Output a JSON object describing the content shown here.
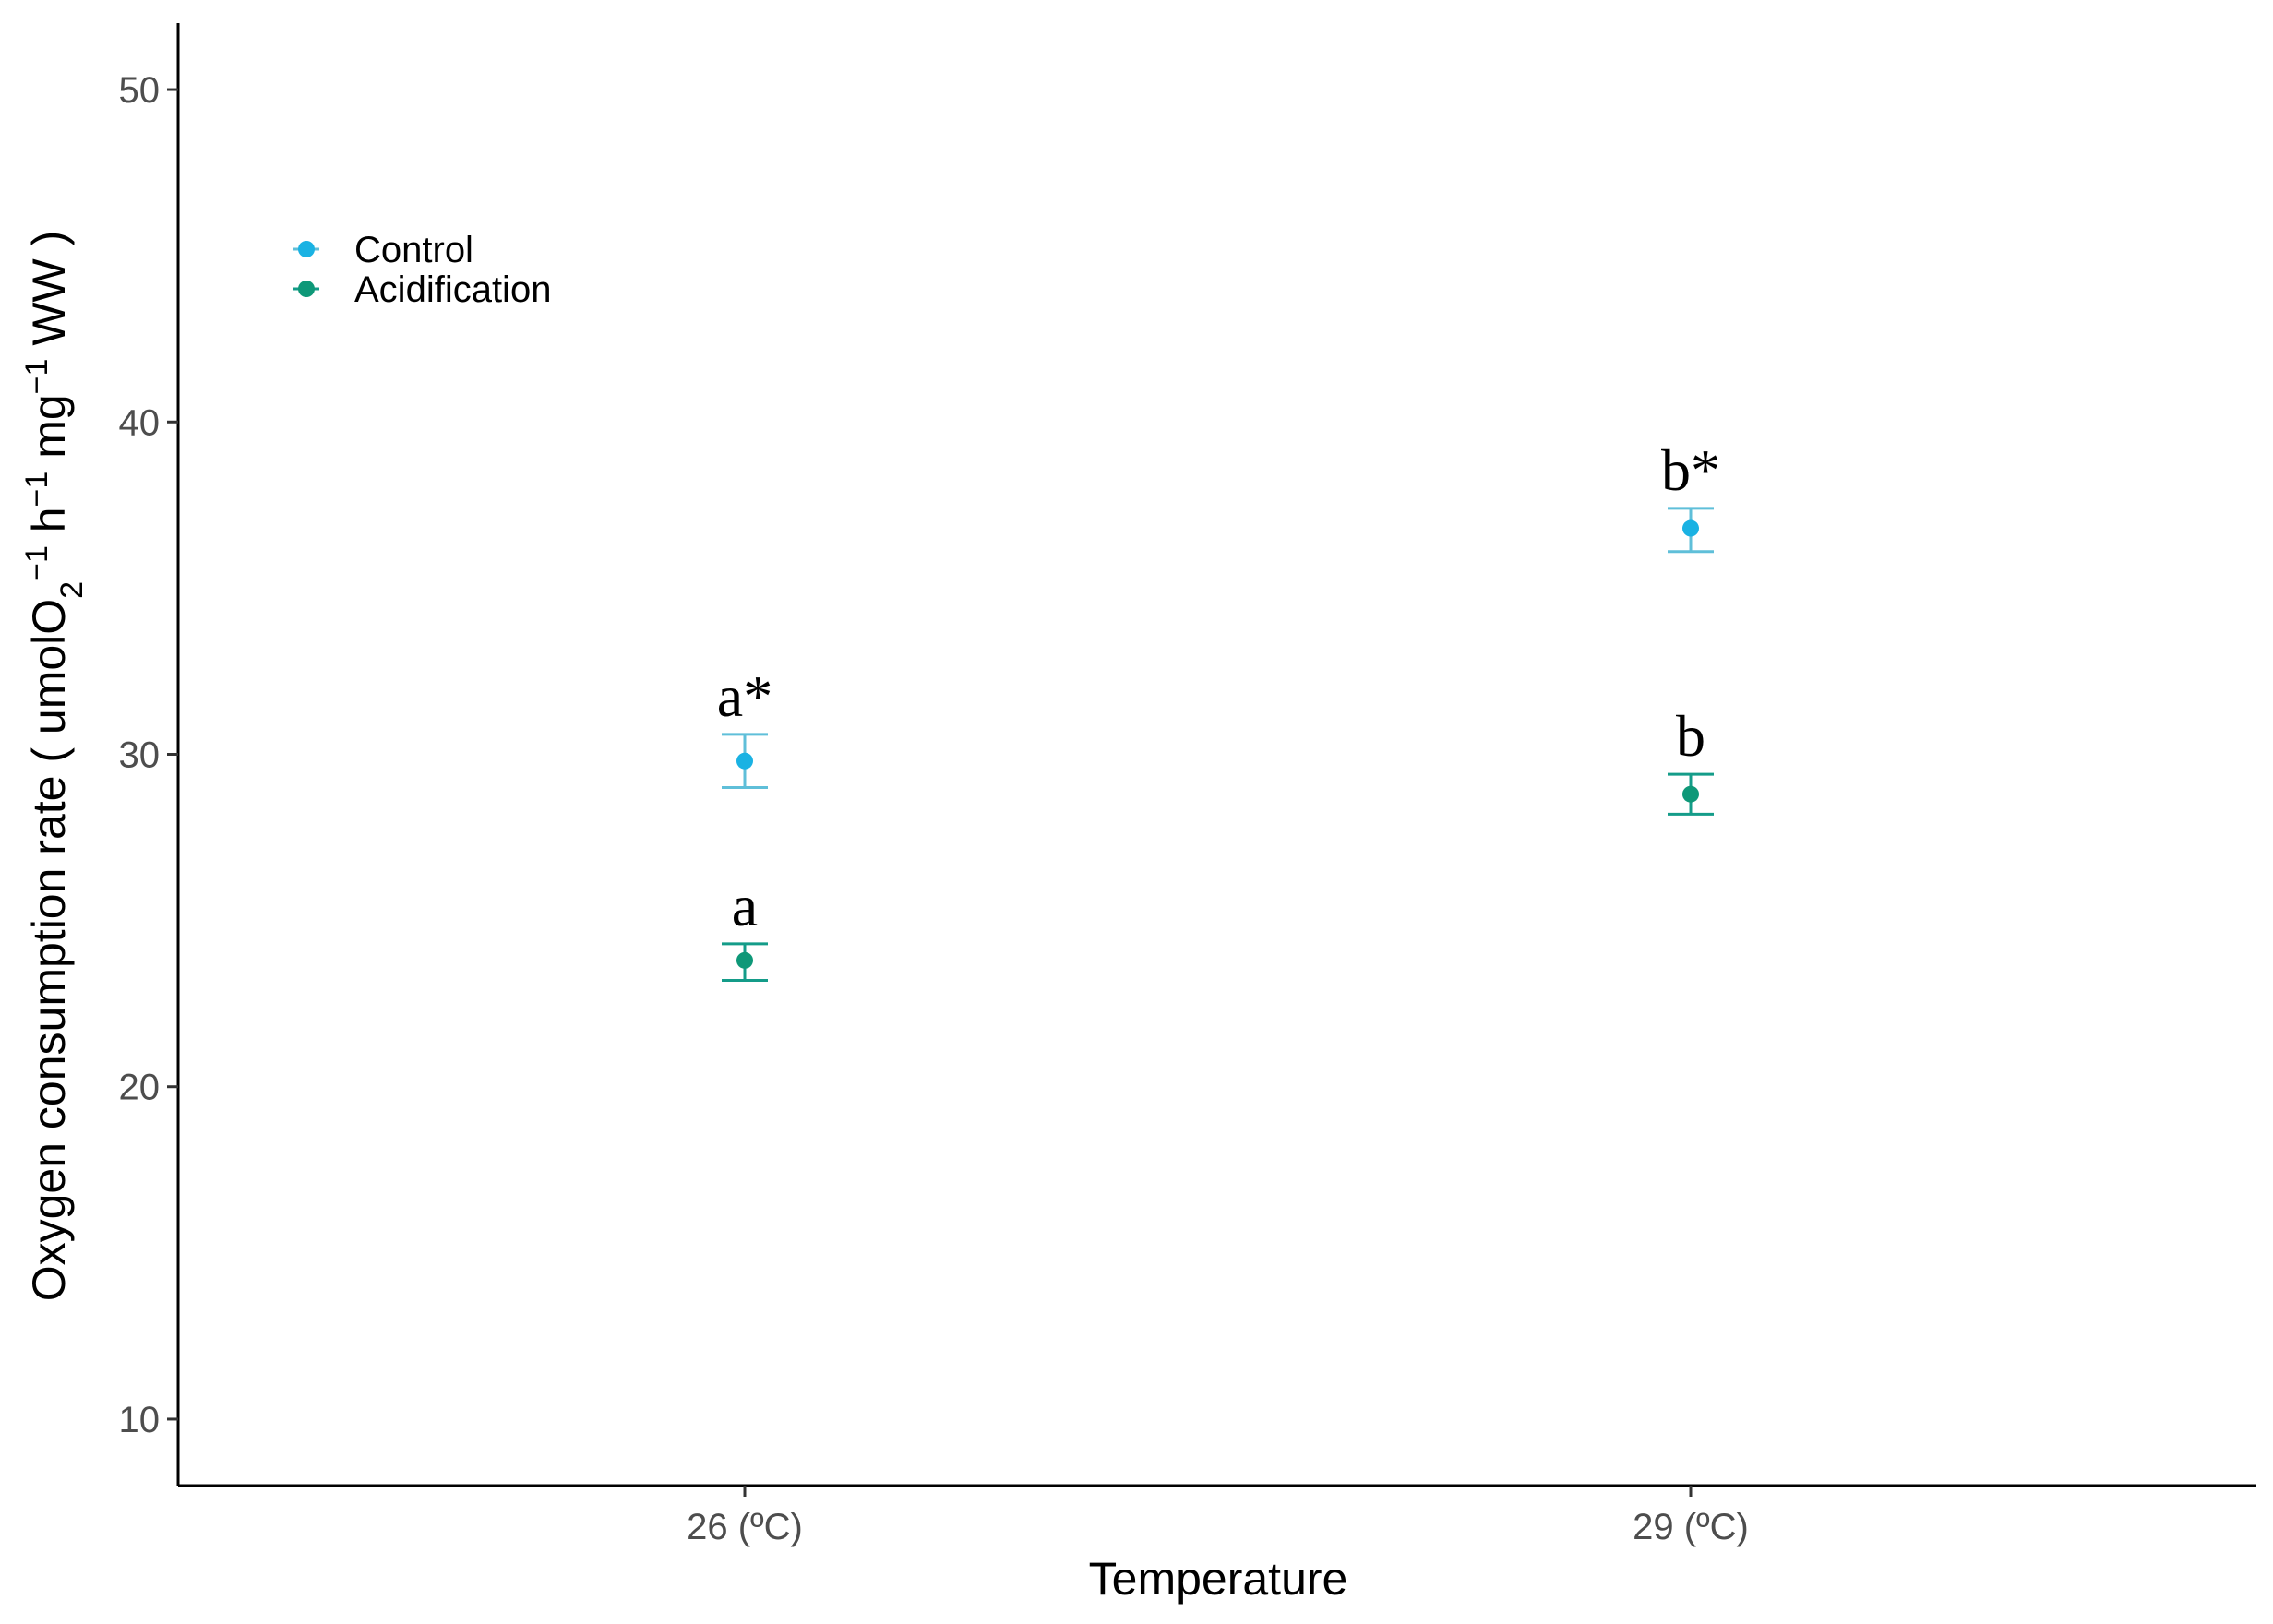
{
  "chart_data": {
    "type": "scatter",
    "xlabel": "Temperature",
    "ylabel": "Oxygen consumption rate ( umolO₂⁻¹ h⁻¹ mg⁻¹ WW )",
    "ylabel_parts": {
      "pre": "Oxygen consumption rate ( umolO",
      "sub": "2",
      "sup1": "−1",
      "mid1": " h",
      "sup2": "−1",
      "mid2": " mg",
      "sup3": "−1",
      "post": " WW )"
    },
    "categories": [
      "26 (ºC)",
      "29 (ºC)"
    ],
    "ylim": [
      8,
      52
    ],
    "yticks": [
      10,
      20,
      30,
      40,
      50
    ],
    "grid": false,
    "legend_position": "top-left",
    "series": [
      {
        "name": "Control",
        "color": "#1ab2e3",
        "bar_color": "#5fbfd9",
        "values": [
          29.8,
          36.8
        ],
        "error_low": [
          29.0,
          36.1
        ],
        "error_high": [
          30.6,
          37.4
        ],
        "labels": [
          "a*",
          "b*"
        ]
      },
      {
        "name": "Acidification",
        "color": "#0e9878",
        "bar_color": "#149c89",
        "values": [
          23.8,
          28.8
        ],
        "error_low": [
          23.2,
          28.2
        ],
        "error_high": [
          24.3,
          29.4
        ],
        "labels": [
          "a",
          "b"
        ]
      }
    ]
  }
}
